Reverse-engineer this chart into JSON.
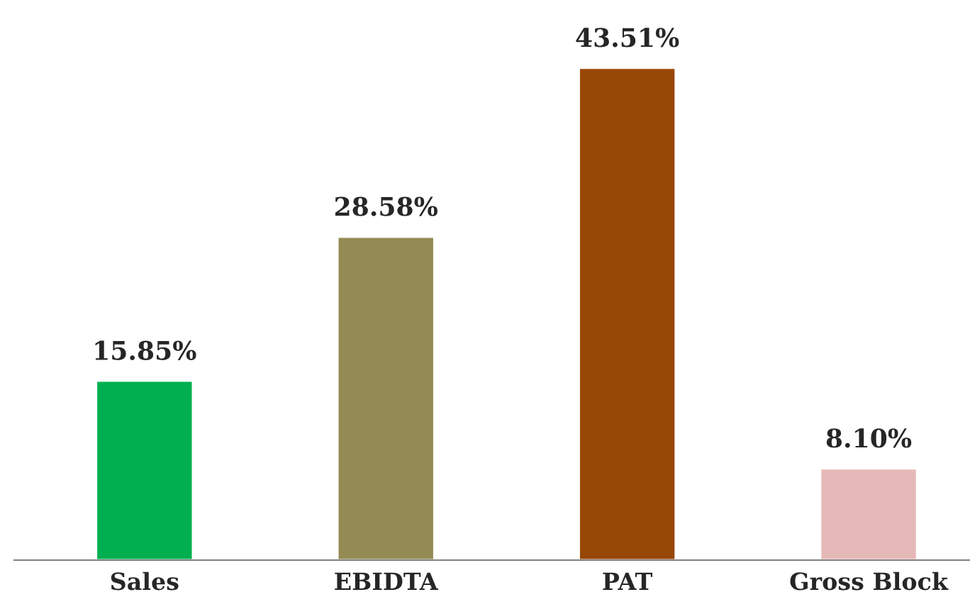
{
  "chart_data": {
    "type": "bar",
    "categories": [
      "Sales",
      "EBIDTA",
      "PAT",
      "Gross Block"
    ],
    "values": [
      15.85,
      28.58,
      43.51,
      8.1
    ],
    "colors": [
      "#00b050",
      "#948a54",
      "#974706",
      "#e6b9b8"
    ],
    "value_labels": [
      "15.85%",
      "28.58%",
      "43.51%",
      "8.10%"
    ],
    "grid": false,
    "legend": false,
    "tick_labels": "x"
  }
}
